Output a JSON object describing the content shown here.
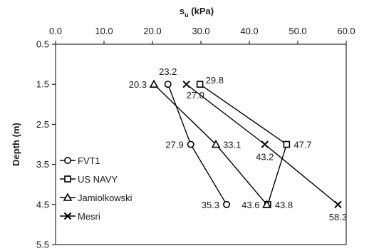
{
  "chart_data": {
    "type": "line",
    "x_axis": {
      "label_main": "s",
      "label_sub": "u",
      "label_rest": " (kPa)",
      "position": "top",
      "range": [
        0,
        60
      ],
      "ticks": [
        "0.0",
        "10.0",
        "20.0",
        "30.0",
        "40.0",
        "50.0",
        "60.0"
      ]
    },
    "y_axis": {
      "label": "Depth (m)",
      "range": [
        0.5,
        5.5
      ],
      "reversed": true,
      "ticks": [
        "0.5",
        "1.5",
        "2.5",
        "3.5",
        "4.5",
        "5.5"
      ]
    },
    "grid": false,
    "legend_position": "bottom-left",
    "series": [
      {
        "name": "FVT1",
        "marker": "circle",
        "points": [
          {
            "x": 23.2,
            "y": 1.5
          },
          {
            "x": 27.9,
            "y": 3.0
          },
          {
            "x": 35.3,
            "y": 4.5
          }
        ]
      },
      {
        "name": "US NAVY",
        "marker": "square",
        "points": [
          {
            "x": 29.8,
            "y": 1.5
          },
          {
            "x": 47.7,
            "y": 3.0
          },
          {
            "x": 43.8,
            "y": 4.5
          }
        ]
      },
      {
        "name": "Jamiolkowski",
        "marker": "triangle",
        "points": [
          {
            "x": 20.3,
            "y": 1.5
          },
          {
            "x": 33.1,
            "y": 3.0
          },
          {
            "x": 43.6,
            "y": 4.5
          }
        ]
      },
      {
        "name": "Mesri",
        "marker": "cross",
        "points": [
          {
            "x": 27.0,
            "y": 1.5
          },
          {
            "x": 43.2,
            "y": 3.0
          },
          {
            "x": 58.3,
            "y": 4.5
          }
        ]
      }
    ],
    "data_labels": [
      {
        "text": "23.2",
        "x": 23.2,
        "y": 1.5,
        "pos": "above"
      },
      {
        "text": "27.9",
        "x": 27.9,
        "y": 3.0,
        "pos": "left"
      },
      {
        "text": "35.3",
        "x": 35.3,
        "y": 4.5,
        "pos": "left"
      },
      {
        "text": "29.8",
        "x": 29.8,
        "y": 1.5,
        "pos": "above-right"
      },
      {
        "text": "47.7",
        "x": 47.7,
        "y": 3.0,
        "pos": "right"
      },
      {
        "text": "43.8",
        "x": 43.8,
        "y": 4.5,
        "pos": "right"
      },
      {
        "text": "20.3",
        "x": 20.3,
        "y": 1.5,
        "pos": "left"
      },
      {
        "text": "33.1",
        "x": 33.1,
        "y": 3.0,
        "pos": "right"
      },
      {
        "text": "43.6",
        "x": 43.6,
        "y": 4.5,
        "pos": "left"
      },
      {
        "text": "27.0",
        "x": 27.0,
        "y": 1.5,
        "pos": "below-right"
      },
      {
        "text": "43.2",
        "x": 43.2,
        "y": 3.0,
        "pos": "below"
      },
      {
        "text": "58.3",
        "x": 58.3,
        "y": 4.5,
        "pos": "below"
      }
    ]
  }
}
